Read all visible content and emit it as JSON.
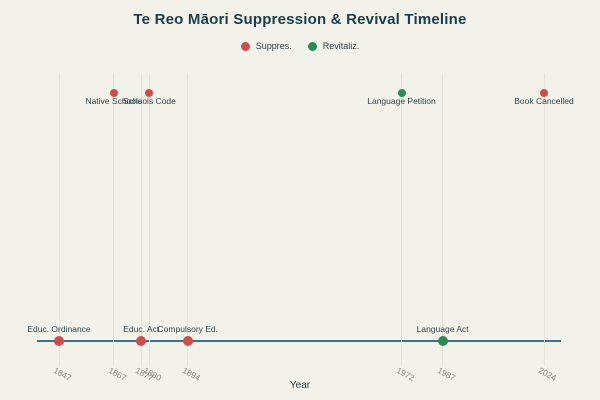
{
  "title": "Te Reo Māori Suppression & Revival Timeline",
  "legend": {
    "items": [
      {
        "label": "Suppres.",
        "color": "#d04c4c"
      },
      {
        "label": "Revitaliz.",
        "color": "#2c8a57"
      }
    ]
  },
  "x_axis": {
    "label": "Year"
  },
  "colors": {
    "background": "#f2f1ea",
    "title": "#1c3d4a",
    "event_label": "#33454c",
    "tick_label": "#8a887e",
    "gridline": "#e3e1d8",
    "axis_line": "#3d7389",
    "suppression": "#d04c4c",
    "revival": "#2c8a57"
  },
  "chart_data": {
    "type": "scatter",
    "title": "Te Reo Māori Suppression & Revival Timeline",
    "xlabel": "Year",
    "xlim": [
      1839,
      2030
    ],
    "x_ticks": [
      1847,
      1867,
      1877,
      1880,
      1894,
      1972,
      1987,
      2024
    ],
    "grid": "vertical-lines-at-event-years",
    "legend_position": "top-center",
    "series": [
      {
        "name": "Suppres.",
        "color": "#d04c4c",
        "points": [
          {
            "year": 1847,
            "label": "Educ. Ordinance",
            "row": "bottom"
          },
          {
            "year": 1867,
            "label": "Native Schools",
            "row": "top"
          },
          {
            "year": 1877,
            "label": "Educ. Act",
            "row": "bottom"
          },
          {
            "year": 1880,
            "label": "Schools Code",
            "row": "top"
          },
          {
            "year": 1894,
            "label": "Compulsory Ed.",
            "row": "bottom"
          },
          {
            "year": 2024,
            "label": "Book Cancelled",
            "row": "top"
          }
        ]
      },
      {
        "name": "Revitaliz.",
        "color": "#2c8a57",
        "points": [
          {
            "year": 1972,
            "label": "Language Petition",
            "row": "top"
          },
          {
            "year": 1987,
            "label": "Language Act",
            "row": "bottom"
          }
        ]
      }
    ]
  }
}
